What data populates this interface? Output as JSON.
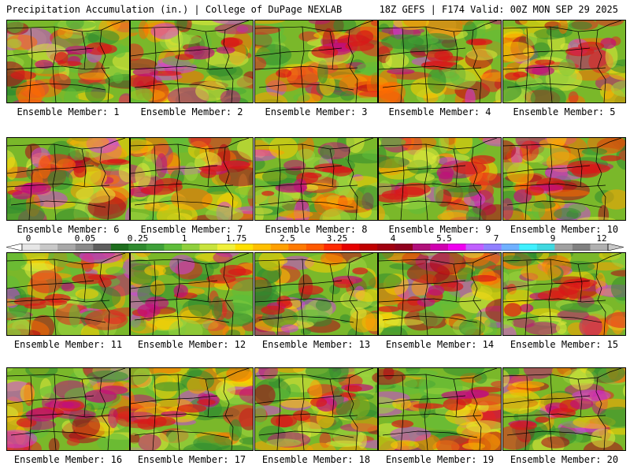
{
  "header": {
    "left_title": "Precipitation Accumulation (in.) | College of DuPage NEXLAB",
    "right_title": "18Z GEFS | F174 Valid: 00Z MON SEP 29 2025"
  },
  "colorbar": {
    "labels": [
      "0",
      "0.05",
      "0.25",
      "1",
      "1.75",
      "2.5",
      "3.25",
      "4",
      "5.5",
      "7",
      "9",
      "12"
    ],
    "colors": [
      "#e6e6e6",
      "#c8c8c8",
      "#a8a8a8",
      "#8a8a8a",
      "#5e5e5e",
      "#1e6e1e",
      "#2f8a2f",
      "#3fa03a",
      "#5fbd3b",
      "#8fd03e",
      "#c8e33e",
      "#f0f03c",
      "#ffe000",
      "#ffc000",
      "#ffa000",
      "#ff7a00",
      "#ff5a00",
      "#ff2a00",
      "#e60000",
      "#c00000",
      "#a00010",
      "#90001e",
      "#b0107a",
      "#d000b0",
      "#f000f0",
      "#c060ff",
      "#9080ff",
      "#70b0ff",
      "#40f0ff",
      "#40d8e0",
      "#a0a0a0",
      "#808080",
      "#b0b0b0"
    ]
  },
  "members": [
    {
      "label": "Ensemble Member: 1"
    },
    {
      "label": "Ensemble Member: 2"
    },
    {
      "label": "Ensemble Member: 3"
    },
    {
      "label": "Ensemble Member: 4"
    },
    {
      "label": "Ensemble Member: 5"
    },
    {
      "label": "Ensemble Member: 6"
    },
    {
      "label": "Ensemble Member: 7"
    },
    {
      "label": "Ensemble Member: 8"
    },
    {
      "label": "Ensemble Member: 9"
    },
    {
      "label": "Ensemble Member: 10"
    },
    {
      "label": "Ensemble Member: 11"
    },
    {
      "label": "Ensemble Member: 12"
    },
    {
      "label": "Ensemble Member: 13"
    },
    {
      "label": "Ensemble Member: 14"
    },
    {
      "label": "Ensemble Member: 15"
    },
    {
      "label": "Ensemble Member: 16"
    },
    {
      "label": "Ensemble Member: 17"
    },
    {
      "label": "Ensemble Member: 18"
    },
    {
      "label": "Ensemble Member: 19"
    },
    {
      "label": "Ensemble Member: 20"
    }
  ]
}
